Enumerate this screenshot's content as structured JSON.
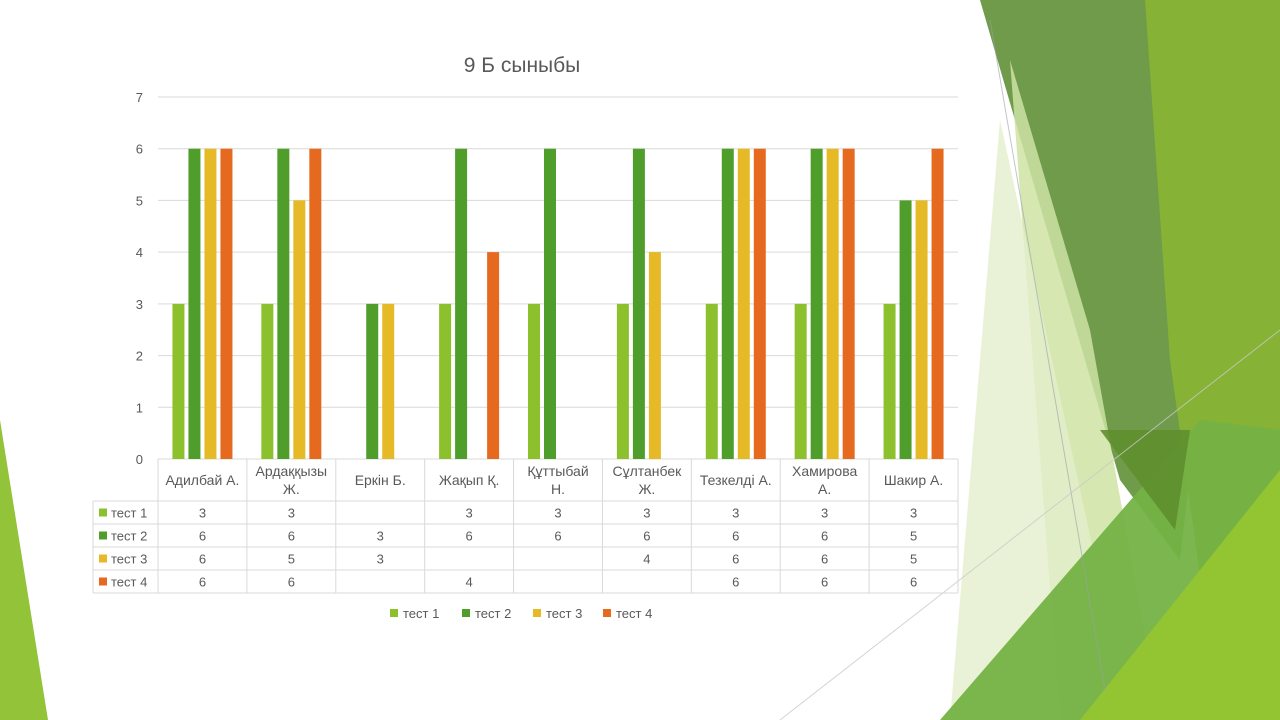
{
  "colors": {
    "series": [
      "#8dc02d",
      "#4f9d2a",
      "#e6b927",
      "#e56a1f"
    ],
    "grid": "#d9d9d9",
    "text": "#595959"
  },
  "chart_data": {
    "type": "bar",
    "title": "9 Б сыныбы",
    "ylim": [
      0,
      7
    ],
    "yticks": [
      0,
      1,
      2,
      3,
      4,
      5,
      6,
      7
    ],
    "grid": true,
    "legend": "bottom",
    "categories": [
      [
        "Адилбай А."
      ],
      [
        "Ардаққызы",
        "Ж."
      ],
      [
        "Еркін Б."
      ],
      [
        "Жақып Қ."
      ],
      [
        "Құттыбай",
        "Н."
      ],
      [
        "Сұлтанбек",
        "Ж."
      ],
      [
        "Тезкелді А."
      ],
      [
        "Хамирова",
        "А."
      ],
      [
        "Шакир А."
      ]
    ],
    "series": [
      {
        "name": "тест 1",
        "values": [
          3,
          3,
          null,
          3,
          3,
          3,
          3,
          3,
          3
        ]
      },
      {
        "name": "тест 2",
        "values": [
          6,
          6,
          3,
          6,
          6,
          6,
          6,
          6,
          5
        ]
      },
      {
        "name": "тест 3",
        "values": [
          6,
          5,
          3,
          null,
          null,
          4,
          6,
          6,
          5
        ]
      },
      {
        "name": "тест 4",
        "values": [
          6,
          6,
          null,
          4,
          null,
          null,
          6,
          6,
          6
        ]
      }
    ],
    "data_table": true
  }
}
